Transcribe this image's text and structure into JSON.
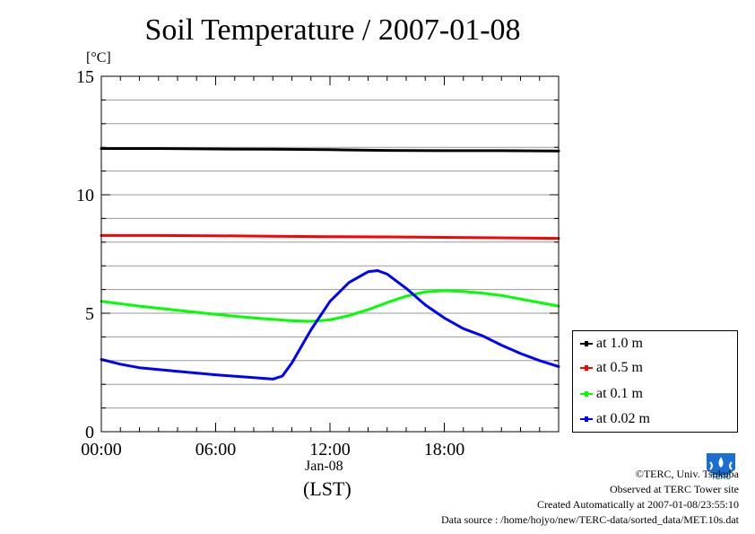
{
  "page": {
    "title": "Soil Temperature / 2007-01-08"
  },
  "credits": {
    "copyright": "©TERC, Univ. Tsukuba",
    "observed": "Observed at TERC Tower site",
    "created": "Created Automatically at 2007-01-08/23:55:10",
    "source": "Data source : /home/hojyo/new/TERC-data/sorted_data/MET.10s.dat"
  },
  "logo": {
    "icon": "terc-logo-icon",
    "text": "TERC"
  },
  "chart_data": {
    "type": "line",
    "title": "Soil Temperature / 2007-01-08",
    "ylabel": "[°C]",
    "xlabel": "(LST)",
    "x_date_label": "Jan-08",
    "ylim": [
      0,
      15
    ],
    "xlim_hours": [
      0,
      24
    ],
    "yticks": [
      "0",
      "5",
      "10",
      "15"
    ],
    "xticks": [
      {
        "h": 0,
        "label": "00:00"
      },
      {
        "h": 6,
        "label": "06:00"
      },
      {
        "h": 12,
        "label": "12:00"
      },
      {
        "h": 18,
        "label": "18:00"
      }
    ],
    "grid": true,
    "legend_position": "right, below plot area",
    "series": [
      {
        "name": "at 1.0 m",
        "color": "#000000",
        "x": [
          0,
          3,
          6,
          9,
          12,
          15,
          18,
          21,
          24
        ],
        "y": [
          11.95,
          11.95,
          11.93,
          11.92,
          11.9,
          11.87,
          11.86,
          11.86,
          11.85
        ]
      },
      {
        "name": "at 0.5 m",
        "color": "#ff0000",
        "x": [
          0,
          3,
          6,
          9,
          12,
          15,
          18,
          21,
          24
        ],
        "y": [
          8.28,
          8.28,
          8.27,
          8.25,
          8.23,
          8.22,
          8.2,
          8.18,
          8.16
        ]
      },
      {
        "name": "at 0.1 m",
        "color": "#00ff00",
        "x": [
          0,
          2,
          4,
          6,
          8,
          10,
          11,
          12,
          13,
          14,
          15,
          16,
          17,
          18,
          19,
          20,
          21,
          22,
          23,
          24
        ],
        "y": [
          5.5,
          5.3,
          5.12,
          4.95,
          4.8,
          4.68,
          4.66,
          4.72,
          4.9,
          5.15,
          5.45,
          5.72,
          5.9,
          5.95,
          5.92,
          5.85,
          5.75,
          5.6,
          5.45,
          5.3
        ]
      },
      {
        "name": "at 0.02 m",
        "color": "#0000ff",
        "x": [
          0,
          1,
          2,
          4,
          6,
          8,
          9,
          9.5,
          10,
          11,
          12,
          13,
          14,
          14.5,
          15,
          16,
          17,
          18,
          19,
          20,
          21,
          22,
          23,
          24
        ],
        "y": [
          3.05,
          2.85,
          2.7,
          2.55,
          2.4,
          2.28,
          2.22,
          2.35,
          2.9,
          4.3,
          5.5,
          6.3,
          6.75,
          6.8,
          6.65,
          6.05,
          5.35,
          4.8,
          4.35,
          4.05,
          3.65,
          3.3,
          3.0,
          2.75
        ]
      }
    ]
  }
}
